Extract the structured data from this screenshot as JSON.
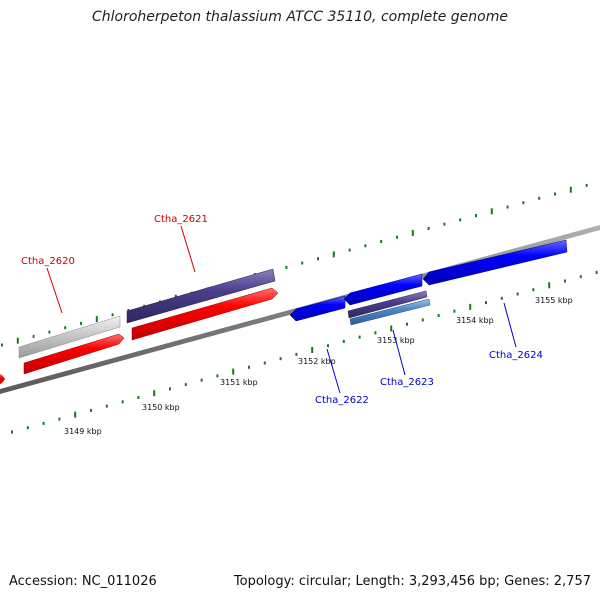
{
  "title": "Chloroherpeton thalassium ATCC 35110, complete genome",
  "footer": {
    "accession": "Accession: NC_011026",
    "summary": "Topology: circular; Length: 3,293,456 bp; Genes: 2,757"
  },
  "kbp_labels": [
    "3149 kbp",
    "3150 kbp",
    "3151 kbp",
    "3152 kbp",
    "3153 kbp",
    "3154 kbp",
    "3155 kbp"
  ],
  "gene_labels": [
    {
      "name": "Ctha_2620",
      "color": "#cc0000"
    },
    {
      "name": "Ctha_2621",
      "color": "#cc0000"
    },
    {
      "name": "Ctha_2622",
      "color": "#0000cc"
    },
    {
      "name": "Ctha_2623",
      "color": "#0000cc"
    },
    {
      "name": "Ctha_2624",
      "color": "#0000cc"
    }
  ],
  "colors": {
    "forward_cds": "#ff0000",
    "reverse_cds": "#0000ff",
    "trna_like": "#4b3f8a",
    "pseudo": "#c8c8c8",
    "light_blue": "#4f86c6",
    "backbone": "#808080",
    "ticks": "#1a7a1a"
  }
}
